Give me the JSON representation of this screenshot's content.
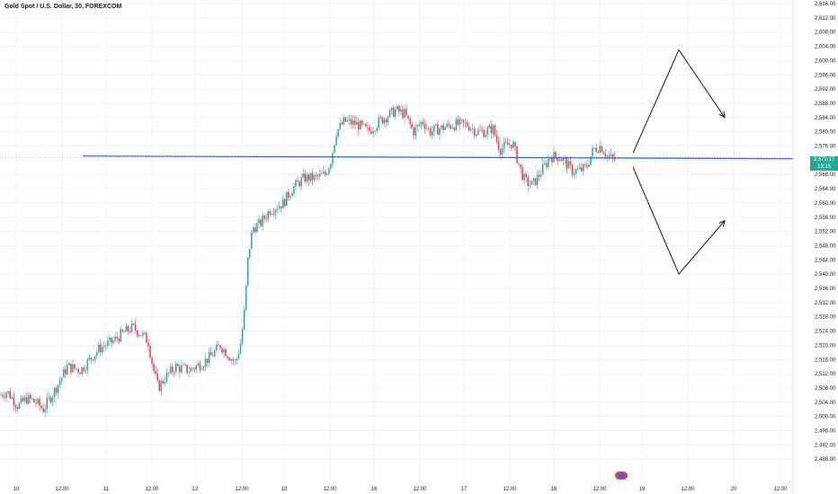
{
  "symbol_title": "Gold Spot / U.S. Dollar, 30, FOREXCOM",
  "price_badge": {
    "price": "2,572.17",
    "countdown": "13:15",
    "color": "#22ab94"
  },
  "icons": {
    "session": "flag-session-icon"
  },
  "colors": {
    "up": "#22ab94",
    "down": "#f23645",
    "line": "#2962ff",
    "grid": "#f0f3fa",
    "axis_text": "#131722"
  },
  "chart_data": {
    "type": "candlestick",
    "title": "Gold Spot / U.S. Dollar, 30, FOREXCOM",
    "ylim": [
      2482,
      2618
    ],
    "y_ticks": [
      "2,616.00",
      "2,612.00",
      "2,608.00",
      "2,604.00",
      "2,600.00",
      "2,596.00",
      "2,592.00",
      "2,588.00",
      "2,584.00",
      "2,580.00",
      "2,576.00",
      "2,572.00",
      "2,568.00",
      "2,564.00",
      "2,560.00",
      "2,556.00",
      "2,552.00",
      "2,548.00",
      "2,544.00",
      "2,540.00",
      "2,536.00",
      "2,532.00",
      "2,528.00",
      "2,524.00",
      "2,520.00",
      "2,516.00",
      "2,512.00",
      "2,508.00",
      "2,504.00",
      "2,500.00",
      "2,496.00",
      "2,492.00",
      "2,488.00"
    ],
    "x_ticks": [
      "10",
      "12:00",
      "11",
      "12:00",
      "12",
      "12:00",
      "13",
      "12:00",
      "16",
      "12:00",
      "17",
      "12:00",
      "18",
      "12:00",
      "19",
      "12:00",
      "20",
      "12:00"
    ],
    "anchors": [
      [
        0,
        2506
      ],
      [
        8,
        2507
      ],
      [
        20,
        2503
      ],
      [
        30,
        2505
      ],
      [
        40,
        2504
      ],
      [
        48,
        2502
      ],
      [
        60,
        2507
      ],
      [
        75,
        2514
      ],
      [
        90,
        2513
      ],
      [
        110,
        2519
      ],
      [
        125,
        2521
      ],
      [
        140,
        2524
      ],
      [
        148,
        2525
      ],
      [
        158,
        2523
      ],
      [
        165,
        2521
      ],
      [
        170,
        2514
      ],
      [
        176,
        2508
      ],
      [
        184,
        2511
      ],
      [
        195,
        2514
      ],
      [
        210,
        2513
      ],
      [
        225,
        2515
      ],
      [
        235,
        2517
      ],
      [
        245,
        2520
      ],
      [
        255,
        2517
      ],
      [
        262,
        2515
      ],
      [
        268,
        2521
      ],
      [
        272,
        2530
      ],
      [
        276,
        2545
      ],
      [
        281,
        2553
      ],
      [
        289,
        2554
      ],
      [
        300,
        2558
      ],
      [
        315,
        2560
      ],
      [
        325,
        2564
      ],
      [
        338,
        2567
      ],
      [
        350,
        2567
      ],
      [
        362,
        2568
      ],
      [
        368,
        2572
      ],
      [
        374,
        2580
      ],
      [
        383,
        2583
      ],
      [
        398,
        2582
      ],
      [
        410,
        2580
      ],
      [
        422,
        2583
      ],
      [
        440,
        2586
      ],
      [
        450,
        2585
      ],
      [
        460,
        2580
      ],
      [
        470,
        2583
      ],
      [
        478,
        2580
      ],
      [
        490,
        2581
      ],
      [
        505,
        2582
      ],
      [
        520,
        2582
      ],
      [
        530,
        2580
      ],
      [
        540,
        2580
      ],
      [
        548,
        2581
      ],
      [
        556,
        2575
      ],
      [
        563,
        2576
      ],
      [
        570,
        2577
      ],
      [
        578,
        2570
      ],
      [
        584,
        2566
      ],
      [
        592,
        2565
      ],
      [
        600,
        2568
      ],
      [
        612,
        2573
      ],
      [
        622,
        2573
      ],
      [
        630,
        2571
      ],
      [
        636,
        2569
      ],
      [
        644,
        2569
      ],
      [
        652,
        2570
      ],
      [
        660,
        2575
      ],
      [
        668,
        2576
      ],
      [
        676,
        2573
      ],
      [
        685,
        2572
      ]
    ],
    "horizontal_line": {
      "price": 2572.17,
      "color": "#2962ff"
    },
    "annotations": [
      {
        "type": "arrow-path",
        "direction": "up-then-down",
        "points": [
          [
            19.0,
            2574
          ],
          [
            19.5,
            2603
          ],
          [
            20.0,
            2584
          ]
        ]
      },
      {
        "type": "arrow-path",
        "direction": "down-then-up",
        "points": [
          [
            19.0,
            2570
          ],
          [
            19.5,
            2540
          ],
          [
            20.0,
            2555
          ]
        ]
      }
    ]
  }
}
